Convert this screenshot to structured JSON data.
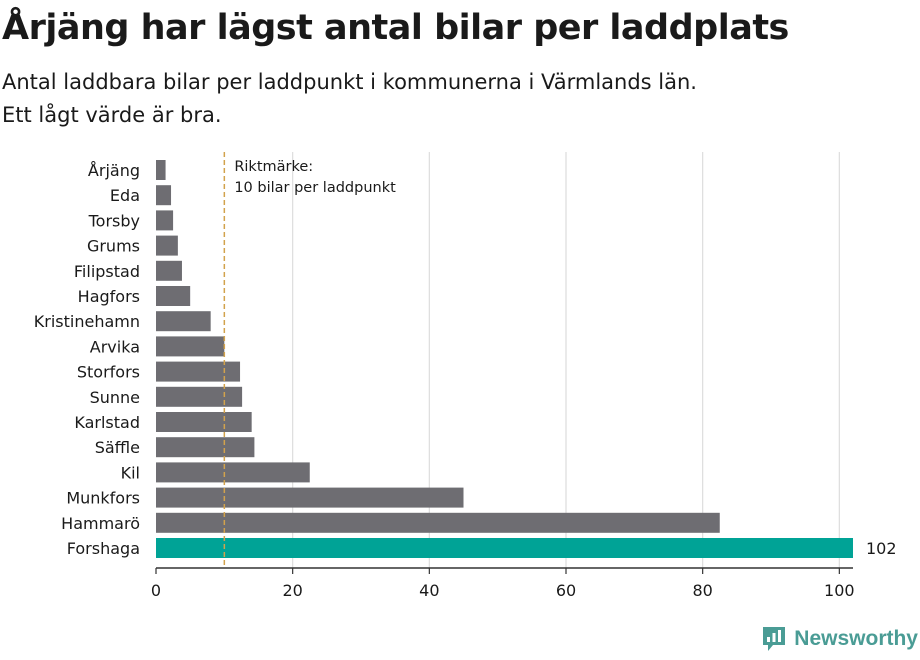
{
  "header": {
    "title": "Årjäng har lägst antal bilar per laddplats",
    "subtitle_line1": "Antal laddbara bilar per laddpunkt i kommunerna i Värmlands län.",
    "subtitle_line2": "Ett lågt värde är bra."
  },
  "brand": {
    "name": "Newsworthy",
    "icon": "newsworthy-logo-icon",
    "color": "#4a9c95"
  },
  "chart_data": {
    "type": "bar",
    "orientation": "horizontal",
    "categories": [
      "Årjäng",
      "Eda",
      "Torsby",
      "Grums",
      "Filipstad",
      "Hagfors",
      "Kristinehamn",
      "Arvika",
      "Storfors",
      "Sunne",
      "Karlstad",
      "Säffle",
      "Kil",
      "Munkfors",
      "Hammarö",
      "Forshaga"
    ],
    "values": [
      1.4,
      2.2,
      2.5,
      3.2,
      3.8,
      5.0,
      8.0,
      10.0,
      12.3,
      12.6,
      14.0,
      14.4,
      22.5,
      45.0,
      82.5,
      102
    ],
    "highlight_index": 15,
    "highlight_label": "102",
    "colors": {
      "bar": "#6e6d72",
      "highlight": "#00a396",
      "reference": "#d2a24c",
      "grid": "#dddddd",
      "axis": "#333333"
    },
    "xlim": [
      0,
      102
    ],
    "xticks": [
      0,
      20,
      40,
      60,
      80,
      100
    ],
    "grid": true,
    "reference_line": {
      "value": 10,
      "label_line1": "Riktmärke:",
      "label_line2": "10 bilar per laddpunkt"
    }
  }
}
